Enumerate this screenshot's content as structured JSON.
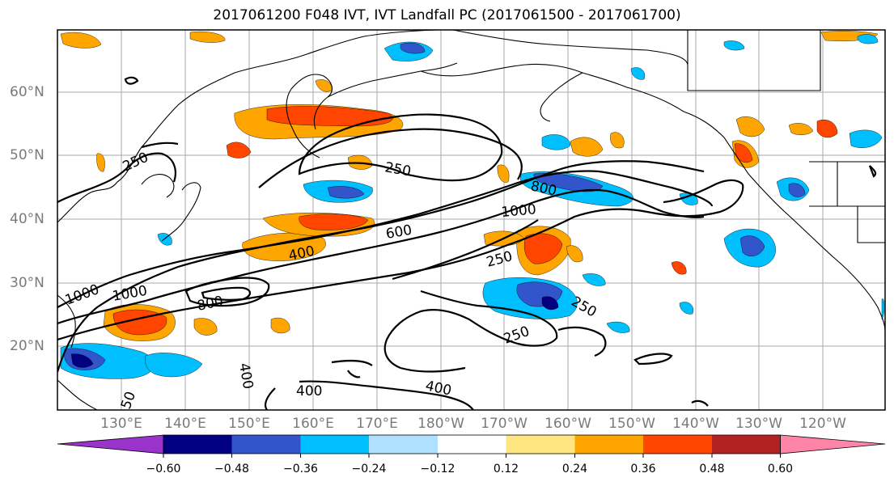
{
  "title": "2017061200 F048 IVT, IVT Landfall PC (2017061500 - 2017061700)",
  "lat_labels": [
    "60°N",
    "50°N",
    "40°N",
    "30°N",
    "20°N"
  ],
  "lon_labels": [
    "130°E",
    "140°E",
    "150°E",
    "160°E",
    "170°E",
    "180°W",
    "170°W",
    "160°W",
    "150°W",
    "140°W",
    "130°W",
    "120°W"
  ],
  "contour_labels": [
    "250",
    "250",
    "800",
    "1000",
    "600",
    "400",
    "250",
    "1000",
    "1000",
    "800",
    "250",
    "250",
    "400",
    "400",
    "400",
    "50"
  ],
  "colorbar": {
    "colors": [
      "#9933cc",
      "#000080",
      "#3355cc",
      "#00bfff",
      "#b0e0ff",
      "#ffffff",
      "#ffe680",
      "#ffa500",
      "#ff4500",
      "#b22222",
      "#ff85a8"
    ],
    "tick_labels": [
      "−0.60",
      "−0.48",
      "−0.36",
      "−0.24",
      "−0.12",
      "0.12",
      "0.24",
      "0.36",
      "0.48",
      "0.60"
    ]
  },
  "colors": {
    "land_outline": "#000000",
    "grid": "#aaaaaa",
    "tick_text": "#7a7a7a"
  }
}
